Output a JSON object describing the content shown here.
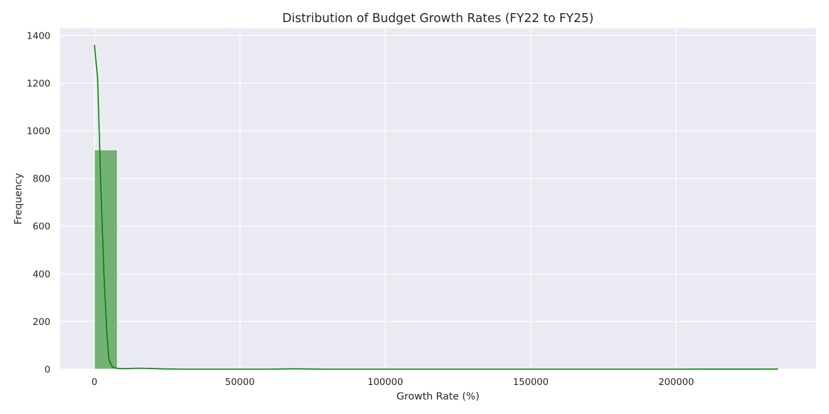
{
  "chart_data": {
    "type": "bar",
    "title": "Distribution of Budget Growth Rates (FY22 to FY25)",
    "xlabel": "Growth Rate (%)",
    "ylabel": "Frequency",
    "xlim": [
      -11800,
      248000
    ],
    "ylim": [
      0,
      1430
    ],
    "x_ticks": [
      0,
      50000,
      100000,
      150000,
      200000
    ],
    "y_ticks": [
      0,
      200,
      400,
      600,
      800,
      1000,
      1200,
      1400
    ],
    "grid": true,
    "bins": [
      {
        "x0": 0,
        "x1": 7900,
        "count": 920
      },
      {
        "x0": 7900,
        "x1": 15800,
        "count": 2
      },
      {
        "x0": 15800,
        "x1": 23700,
        "count": 1
      },
      {
        "x0": 63200,
        "x1": 71100,
        "count": 1
      },
      {
        "x0": 71100,
        "x1": 79000,
        "count": 1
      },
      {
        "x0": 229100,
        "x1": 237000,
        "count": 1
      }
    ],
    "kde": {
      "x": [
        0,
        1100,
        2200,
        3300,
        4300,
        5000,
        6000,
        7000,
        8000,
        9500,
        11000,
        13000,
        15000,
        18000,
        21000,
        24000,
        27000,
        30000,
        40000,
        50000,
        60000,
        66000,
        69000,
        72000,
        76000,
        80000,
        100000,
        150000,
        200000,
        230000,
        235000
      ],
      "y": [
        1360,
        1220,
        770,
        390,
        145,
        40,
        12,
        5,
        3,
        2,
        2,
        3,
        4,
        3,
        2,
        1,
        0.5,
        0,
        0,
        0,
        0,
        0.8,
        1.5,
        0.8,
        0.2,
        0,
        0,
        0,
        0,
        0.2,
        0.5
      ]
    },
    "colors": {
      "bar_fill": "#73b173",
      "bar_edge": "#ffffff",
      "kde_line": "#008000",
      "plot_bg": "#eaeaf2",
      "grid": "#ffffff"
    }
  }
}
